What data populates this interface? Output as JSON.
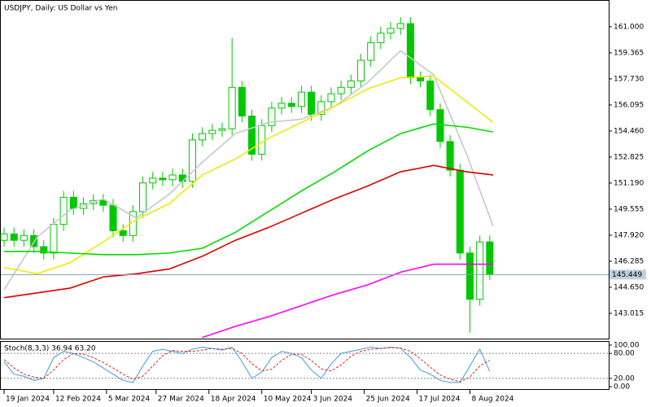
{
  "chart_data": [
    {
      "type": "candlestick",
      "title": "USDJPY, Daily:  US Dollar vs Yen",
      "color": "#00c800",
      "x": [
        0,
        3,
        6,
        9,
        12,
        15,
        18,
        21,
        24,
        27,
        30,
        33,
        36,
        39,
        42,
        45,
        48,
        51,
        54,
        57,
        60,
        63,
        66,
        69,
        72,
        75,
        78,
        81,
        84,
        87,
        90,
        93,
        96,
        99,
        102,
        105,
        108,
        111,
        114,
        117,
        120,
        123,
        126,
        129,
        132,
        135,
        138,
        141,
        144,
        147
      ],
      "open": [
        147.6,
        148.0,
        147.6,
        147.9,
        147.2,
        146.8,
        148.6,
        150.3,
        149.6,
        149.9,
        150.1,
        149.8,
        148.2,
        147.9,
        149.4,
        151.2,
        151.5,
        151.4,
        151.7,
        151.3,
        153.9,
        154.3,
        154.5,
        154.6,
        157.2,
        155.4,
        153.0,
        154.8,
        155.9,
        156.2,
        156.0,
        156.9,
        155.5,
        156.3,
        156.8,
        157.2,
        157.6,
        158.9,
        160.0,
        160.6,
        160.9,
        161.2,
        157.8,
        157.6,
        155.8,
        153.8,
        152.0,
        146.8,
        143.9,
        147.5
      ],
      "high": [
        148.4,
        148.4,
        148.3,
        148.3,
        147.6,
        149.0,
        150.7,
        150.7,
        150.3,
        150.5,
        150.5,
        150.2,
        148.6,
        149.8,
        151.6,
        151.9,
        151.9,
        152.1,
        152.1,
        154.3,
        154.7,
        154.9,
        155.0,
        160.3,
        157.6,
        155.8,
        155.2,
        156.3,
        156.6,
        156.6,
        157.3,
        157.3,
        156.7,
        157.2,
        157.6,
        158.0,
        159.3,
        160.4,
        161.0,
        161.3,
        161.6,
        161.6,
        158.2,
        158.0,
        156.2,
        154.2,
        152.4,
        147.2,
        147.9,
        147.9
      ],
      "low": [
        147.2,
        147.2,
        147.2,
        146.8,
        146.4,
        146.4,
        148.2,
        149.2,
        149.2,
        149.5,
        149.4,
        147.8,
        147.5,
        147.5,
        149.0,
        150.8,
        151.0,
        151.0,
        150.9,
        150.9,
        153.5,
        153.9,
        154.1,
        154.2,
        155.0,
        152.6,
        152.6,
        154.4,
        155.5,
        155.6,
        155.6,
        155.1,
        155.1,
        155.9,
        156.4,
        156.8,
        157.2,
        158.5,
        159.6,
        160.2,
        160.5,
        157.4,
        157.2,
        155.4,
        153.4,
        151.6,
        146.4,
        141.8,
        143.5,
        145.1
      ],
      "close": [
        148.0,
        147.6,
        147.9,
        147.2,
        146.8,
        148.6,
        150.3,
        149.6,
        149.9,
        150.1,
        149.8,
        148.2,
        147.9,
        149.4,
        151.2,
        151.5,
        151.4,
        151.7,
        151.3,
        153.9,
        154.3,
        154.5,
        154.6,
        157.2,
        155.4,
        153.0,
        154.8,
        155.9,
        156.2,
        156.0,
        156.9,
        155.5,
        156.3,
        156.8,
        157.2,
        157.6,
        158.9,
        160.0,
        160.6,
        160.9,
        161.2,
        157.8,
        157.6,
        155.8,
        153.8,
        152.0,
        146.8,
        143.9,
        147.5,
        145.449
      ],
      "series": [
        {
          "color": "#c8c8c8",
          "x": [
            0,
            10,
            20,
            30,
            40,
            50,
            60,
            70,
            80,
            90,
            100,
            110,
            120,
            130,
            140,
            148
          ],
          "values": [
            144.5,
            147.8,
            149.5,
            150.2,
            149.0,
            150.5,
            152.5,
            154.3,
            155.0,
            155.2,
            156.0,
            157.5,
            159.5,
            158.0,
            153.0,
            148.5
          ]
        },
        {
          "color": "#f0e80a",
          "x": [
            0,
            10,
            20,
            30,
            40,
            50,
            60,
            70,
            80,
            90,
            100,
            110,
            120,
            130,
            140,
            148
          ],
          "values": [
            145.9,
            145.5,
            146.2,
            147.5,
            148.9,
            149.9,
            151.7,
            152.7,
            154.0,
            155.0,
            156.0,
            157.1,
            157.8,
            157.9,
            156.3,
            155.0
          ]
        },
        {
          "color": "#00dc00",
          "x": [
            0,
            10,
            20,
            30,
            40,
            50,
            60,
            70,
            80,
            90,
            100,
            110,
            120,
            130,
            140,
            148
          ],
          "values": [
            146.9,
            146.9,
            146.8,
            146.7,
            146.7,
            146.8,
            147.1,
            148.1,
            149.4,
            150.7,
            151.9,
            153.2,
            154.3,
            154.9,
            154.7,
            154.4
          ]
        },
        {
          "color": "#dc0000",
          "x": [
            0,
            10,
            20,
            30,
            40,
            50,
            60,
            70,
            80,
            90,
            100,
            110,
            120,
            130,
            140,
            148
          ],
          "values": [
            144.0,
            144.3,
            144.6,
            145.3,
            145.5,
            145.8,
            146.6,
            147.6,
            148.4,
            149.3,
            150.2,
            151.0,
            151.9,
            152.3,
            151.9,
            151.7
          ]
        },
        {
          "color": "#ff00ff",
          "x": [
            0,
            10,
            20,
            30,
            40,
            50,
            60,
            70,
            80,
            90,
            100,
            110,
            120,
            130,
            140,
            148
          ],
          "values": [
            null,
            null,
            null,
            null,
            null,
            null,
            141.5,
            142.2,
            142.8,
            143.5,
            144.2,
            144.8,
            145.6,
            146.1,
            146.1,
            146.1
          ]
        }
      ],
      "last_price": {
        "value": 145.449,
        "label": "145.449"
      },
      "xlim": [
        -1,
        183
      ],
      "ylim": [
        141.48,
        162.58
      ],
      "yticks": [
        {
          "value": 161,
          "label": "161.000"
        },
        159.365,
        {
          "value": 157.73,
          "label": "157.730"
        },
        156.095,
        {
          "value": 154.46,
          "label": "154.460"
        },
        152.825,
        {
          "value": 151.19,
          "label": "151.190"
        },
        149.555,
        {
          "value": 147.92,
          "label": "147.920"
        },
        146.285,
        {
          "value": 144.65,
          "label": "144.650"
        },
        143.015
      ],
      "xticks": [
        {
          "value": 0,
          "label": "19 Jan 2024"
        },
        {
          "value": 15,
          "label": "12 Feb 2024"
        },
        {
          "value": 31,
          "label": "5 Mar 2024"
        },
        {
          "value": 46,
          "label": "27 Mar 2024"
        },
        {
          "value": 62,
          "label": "18 Apr 2024"
        },
        {
          "value": 78,
          "label": "10 May 2024"
        },
        {
          "value": 93,
          "label": "3 Jun 2024"
        },
        {
          "value": 109,
          "label": "25 Jun 2024"
        },
        {
          "value": 125,
          "label": "17 Jul 2024"
        },
        {
          "value": 141,
          "label": "8 Aug 2024"
        }
      ]
    },
    {
      "type": "line",
      "title": "Stoch(8,3,3) 36.94 63.20",
      "x": [
        0,
        3,
        6,
        9,
        12,
        15,
        18,
        21,
        24,
        27,
        30,
        33,
        36,
        39,
        42,
        45,
        48,
        51,
        54,
        57,
        60,
        63,
        66,
        69,
        72,
        75,
        78,
        81,
        84,
        87,
        90,
        93,
        96,
        99,
        102,
        105,
        108,
        111,
        114,
        117,
        120,
        123,
        126,
        129,
        132,
        135,
        138,
        141,
        144,
        147
      ],
      "series": [
        {
          "color": "#3c9be0",
          "values": [
            60,
            30,
            25,
            15,
            20,
            70,
            85,
            80,
            70,
            60,
            45,
            30,
            15,
            10,
            50,
            85,
            90,
            85,
            80,
            90,
            95,
            92,
            88,
            95,
            60,
            20,
            35,
            70,
            85,
            80,
            70,
            40,
            20,
            55,
            80,
            85,
            90,
            95,
            92,
            95,
            93,
            70,
            40,
            30,
            15,
            10,
            10,
            50,
            90,
            36.94
          ]
        },
        {
          "color": "#e02020",
          "dashed": true,
          "values": [
            65,
            45,
            30,
            23,
            20,
            40,
            65,
            80,
            78,
            70,
            58,
            45,
            30,
            18,
            25,
            50,
            75,
            87,
            85,
            85,
            88,
            92,
            90,
            92,
            80,
            55,
            38,
            42,
            63,
            78,
            78,
            63,
            43,
            38,
            52,
            73,
            85,
            90,
            92,
            94,
            93,
            85,
            67,
            47,
            28,
            18,
            12,
            23,
            50,
            63.2
          ]
        }
      ],
      "xlim": [
        -1,
        183
      ],
      "ylim": [
        -5.9,
        107.8
      ],
      "yticks": [
        {
          "value": 100,
          "label": "100.00"
        },
        {
          "value": 80,
          "label": "80.00"
        },
        {
          "value": 20,
          "label": "20.00"
        },
        {
          "value": 0,
          "label": "0.00"
        }
      ]
    }
  ]
}
